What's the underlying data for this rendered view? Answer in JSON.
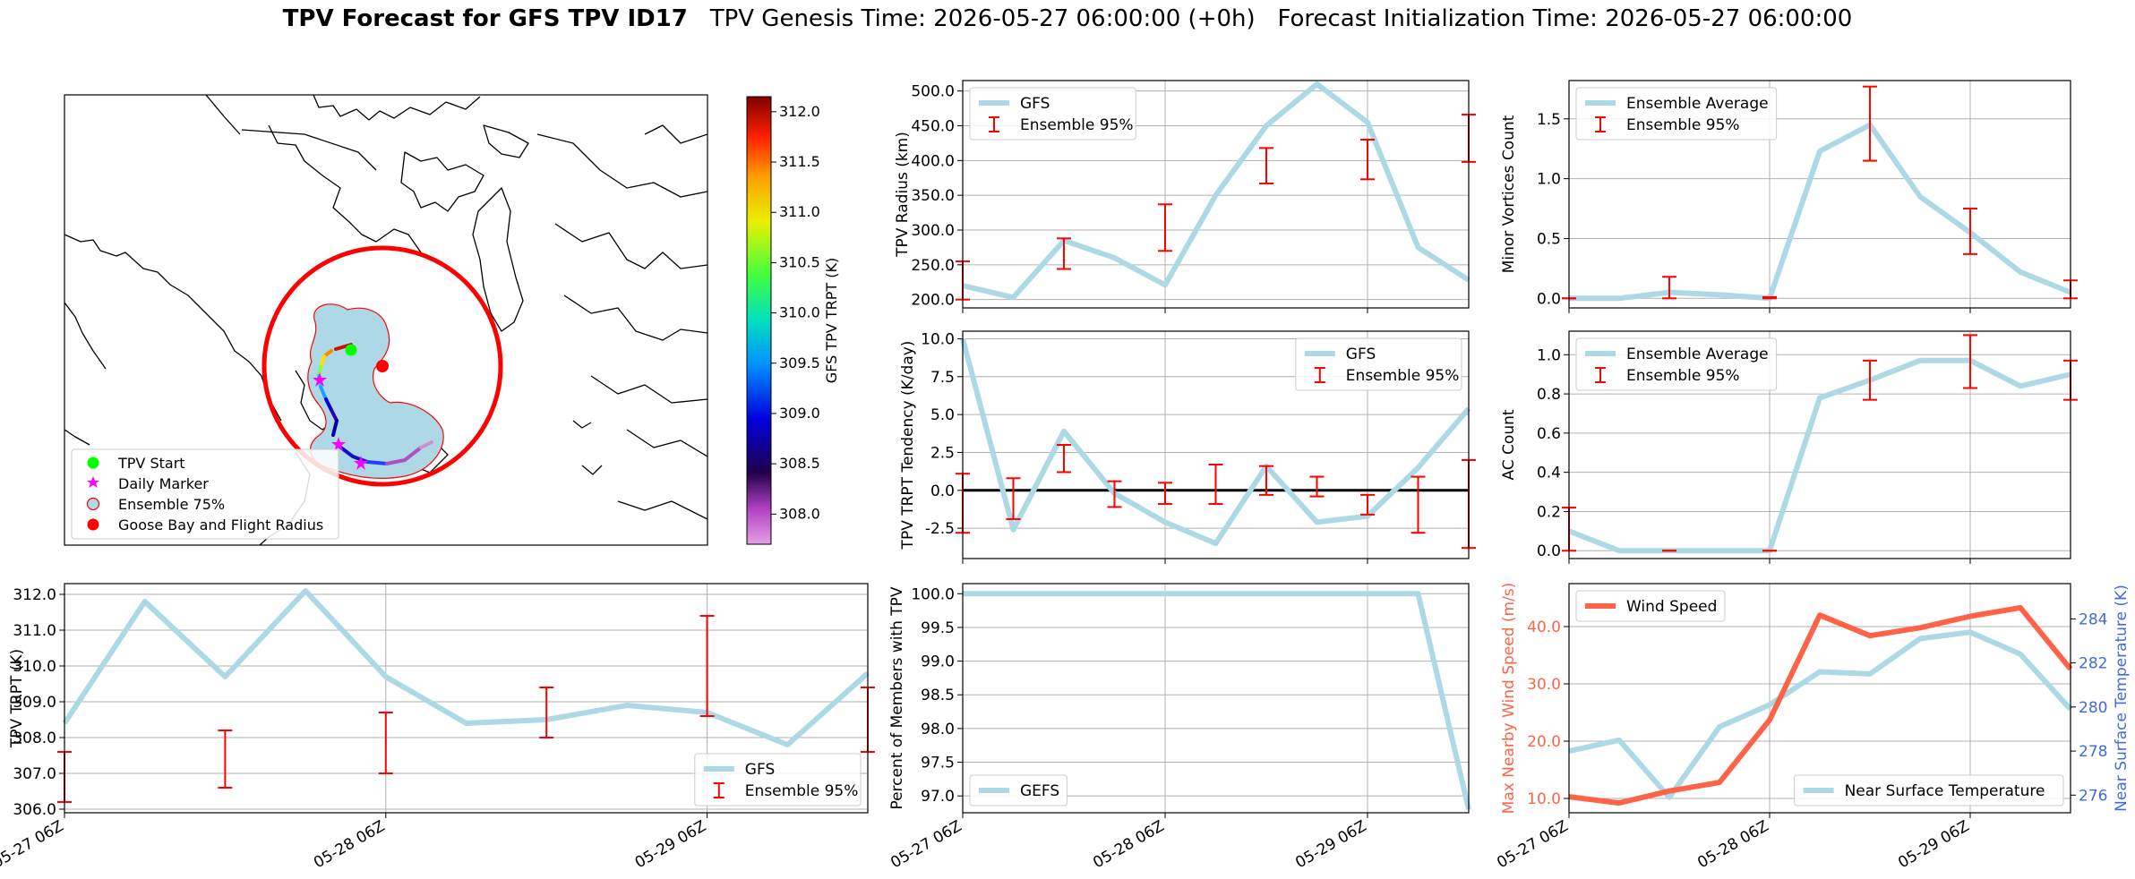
{
  "title": {
    "bold": "TPV Forecast for GFS TPV ID17",
    "genesis": "TPV Genesis Time: 2026-05-27 06:00:00 (+0h)",
    "init": "Forecast Initialization Time: 2026-05-27 06:00:00"
  },
  "colors": {
    "gfs": "#add8e6",
    "ens": "#ff0000",
    "wind": "#ff6347",
    "temp": "#4169e1",
    "zero": "#000000"
  },
  "map": {
    "legend": [
      "TPV Start",
      "Daily Marker",
      "Ensemble 75%",
      "Goose Bay and Flight Radius"
    ],
    "colorbar": {
      "label": "GFS TPV TRPT (K)",
      "min": 307.7,
      "max": 312.15,
      "ticks": [
        "308.0",
        "308.5",
        "309.0",
        "309.5",
        "310.0",
        "310.5",
        "311.0",
        "311.5",
        "312.0"
      ]
    }
  },
  "chart_data": [
    {
      "id": "trpt",
      "type": "line",
      "ylabel": "TPV TRPT (K)",
      "xticks": [
        "05-27 06Z",
        "05-28 06Z",
        "05-29 06Z"
      ],
      "xlim": [
        0,
        60
      ],
      "ylim": [
        305.9,
        312.3
      ],
      "yticks": [
        306,
        307,
        308,
        309,
        310,
        311,
        312
      ],
      "legend": "lower right",
      "series": [
        {
          "name": "GFS",
          "x": [
            0,
            6,
            12,
            18,
            24,
            30,
            36,
            42,
            48,
            54,
            60
          ],
          "y": [
            308.4,
            311.8,
            309.7,
            312.1,
            309.7,
            308.4,
            308.5,
            308.9,
            308.7,
            307.8,
            309.8
          ]
        }
      ],
      "errorbars": {
        "name": "Ensemble 95%",
        "x": [
          0,
          12,
          24,
          36,
          48,
          60
        ],
        "low": [
          306.2,
          306.6,
          307.0,
          308.0,
          308.6,
          307.6
        ],
        "high": [
          307.6,
          308.2,
          308.7,
          309.4,
          311.4,
          309.4
        ]
      }
    },
    {
      "id": "radius",
      "type": "line",
      "ylabel": "TPV Radius (km)",
      "xlim": [
        0,
        60
      ],
      "ylim": [
        188,
        515
      ],
      "yticks": [
        200,
        250,
        300,
        350,
        400,
        450,
        500
      ],
      "legend": "upper left",
      "series": [
        {
          "name": "GFS",
          "x": [
            0,
            6,
            12,
            18,
            24,
            30,
            36,
            42,
            48,
            54,
            60
          ],
          "y": [
            220,
            203,
            285,
            260,
            221,
            350,
            450,
            510,
            455,
            275,
            228
          ]
        }
      ],
      "errorbars": {
        "name": "Ensemble 95%",
        "x": [
          0,
          12,
          24,
          36,
          48,
          60
        ],
        "low": [
          200,
          244,
          270,
          367,
          373,
          398
        ],
        "high": [
          255,
          288,
          337,
          418,
          430,
          466
        ]
      }
    },
    {
      "id": "tendency",
      "type": "line",
      "ylabel": "TPV TRPT Tendency (K/day)",
      "xlim": [
        0,
        60
      ],
      "ylim": [
        -4.5,
        10.5
      ],
      "yticks": [
        -2.5,
        0.0,
        2.5,
        5.0,
        7.5,
        10.0
      ],
      "legend": "upper right",
      "zero_line": 0,
      "series": [
        {
          "name": "GFS",
          "x": [
            0,
            6,
            12,
            18,
            24,
            30,
            36,
            42,
            48,
            54,
            60
          ],
          "y": [
            10.0,
            -2.6,
            3.9,
            -0.2,
            -2.1,
            -3.5,
            1.6,
            -2.1,
            -1.7,
            1.5,
            5.4
          ]
        }
      ],
      "errorbars": {
        "name": "Ensemble 95%",
        "x": [
          0,
          6,
          12,
          18,
          24,
          30,
          36,
          42,
          48,
          54,
          60
        ],
        "low": [
          -2.8,
          -1.9,
          1.2,
          -1.1,
          -0.9,
          -0.9,
          -0.3,
          -0.4,
          -1.6,
          -2.8,
          -3.8
        ],
        "high": [
          1.1,
          0.8,
          3.0,
          0.6,
          0.5,
          1.7,
          1.6,
          0.9,
          -0.3,
          0.9,
          2.0
        ]
      }
    },
    {
      "id": "members",
      "type": "line",
      "ylabel": "Percent of Members with TPV",
      "xticks": [
        "05-27 06Z",
        "05-28 06Z",
        "05-29 06Z"
      ],
      "xlim": [
        0,
        60
      ],
      "ylim": [
        96.75,
        100.15
      ],
      "yticks": [
        97.0,
        97.5,
        98.0,
        98.5,
        99.0,
        99.5,
        100.0
      ],
      "legend": "lower left",
      "series": [
        {
          "name": "GEFS",
          "x": [
            0,
            6,
            12,
            18,
            24,
            30,
            36,
            42,
            48,
            54,
            60
          ],
          "y": [
            100,
            100,
            100,
            100,
            100,
            100,
            100,
            100,
            100,
            100,
            96.8
          ]
        }
      ]
    },
    {
      "id": "minor",
      "type": "line",
      "ylabel": "Minor Vortices Count",
      "xlim": [
        0,
        60
      ],
      "ylim": [
        -0.08,
        1.82
      ],
      "yticks": [
        0.0,
        0.5,
        1.0,
        1.5
      ],
      "legend": "upper left",
      "series": [
        {
          "name": "Ensemble Average",
          "x": [
            0,
            6,
            12,
            18,
            24,
            30,
            36,
            42,
            48,
            54,
            60
          ],
          "y": [
            0.0,
            0.0,
            0.05,
            0.03,
            0.0,
            1.23,
            1.45,
            0.85,
            0.55,
            0.22,
            0.05
          ]
        }
      ],
      "errorbars": {
        "name": "Ensemble 95%",
        "x": [
          0,
          12,
          24,
          36,
          48,
          60
        ],
        "low": [
          0.0,
          0.0,
          0.0,
          1.15,
          0.37,
          0.0
        ],
        "high": [
          0.0,
          0.18,
          0.01,
          1.77,
          0.75,
          0.15
        ]
      }
    },
    {
      "id": "ac",
      "type": "line",
      "ylabel": "AC Count",
      "xlim": [
        0,
        60
      ],
      "ylim": [
        -0.04,
        1.12
      ],
      "yticks": [
        0.0,
        0.2,
        0.4,
        0.6,
        0.8,
        1.0
      ],
      "legend": "upper left",
      "series": [
        {
          "name": "Ensemble Average",
          "x": [
            0,
            6,
            12,
            18,
            24,
            30,
            36,
            42,
            48,
            54,
            60
          ],
          "y": [
            0.1,
            0.0,
            0.0,
            0.0,
            0.0,
            0.78,
            0.87,
            0.97,
            0.97,
            0.84,
            0.9
          ]
        }
      ],
      "errorbars": {
        "name": "Ensemble 95%",
        "x": [
          0,
          12,
          24,
          36,
          48,
          60
        ],
        "low": [
          0.0,
          0.0,
          0.0,
          0.77,
          0.83,
          0.77
        ],
        "high": [
          0.22,
          0.0,
          0.0,
          0.97,
          1.1,
          0.97
        ]
      }
    },
    {
      "id": "wind",
      "type": "line",
      "ylabel": "Max Nearby Wind Speed (m/s)",
      "ylabel2": "Near Surface Temperature (K)",
      "xticks": [
        "05-27 06Z",
        "05-28 06Z",
        "05-29 06Z"
      ],
      "xlim": [
        0,
        60
      ],
      "ylim": [
        7.5,
        47.5
      ],
      "yticks": [
        10,
        20,
        30,
        40
      ],
      "ylim2": [
        275.2,
        285.6
      ],
      "yticks2": [
        276,
        278,
        280,
        282,
        284
      ],
      "series": [
        {
          "name": "Wind Speed",
          "axis": "left",
          "legend": "upper left",
          "x": [
            0,
            6,
            12,
            18,
            24,
            30,
            36,
            42,
            48,
            54,
            60
          ],
          "y": [
            10.3,
            9.2,
            11.3,
            12.8,
            23.7,
            42.0,
            38.4,
            39.8,
            41.8,
            43.3,
            32.6
          ]
        },
        {
          "name": "Near Surface Temperature",
          "axis": "right",
          "legend": "lower right",
          "x": [
            0,
            6,
            12,
            18,
            24,
            30,
            36,
            42,
            48,
            54,
            60
          ],
          "y": [
            278.0,
            278.5,
            275.9,
            279.1,
            280.1,
            281.6,
            281.5,
            283.1,
            283.4,
            282.4,
            279.9
          ]
        }
      ]
    }
  ]
}
